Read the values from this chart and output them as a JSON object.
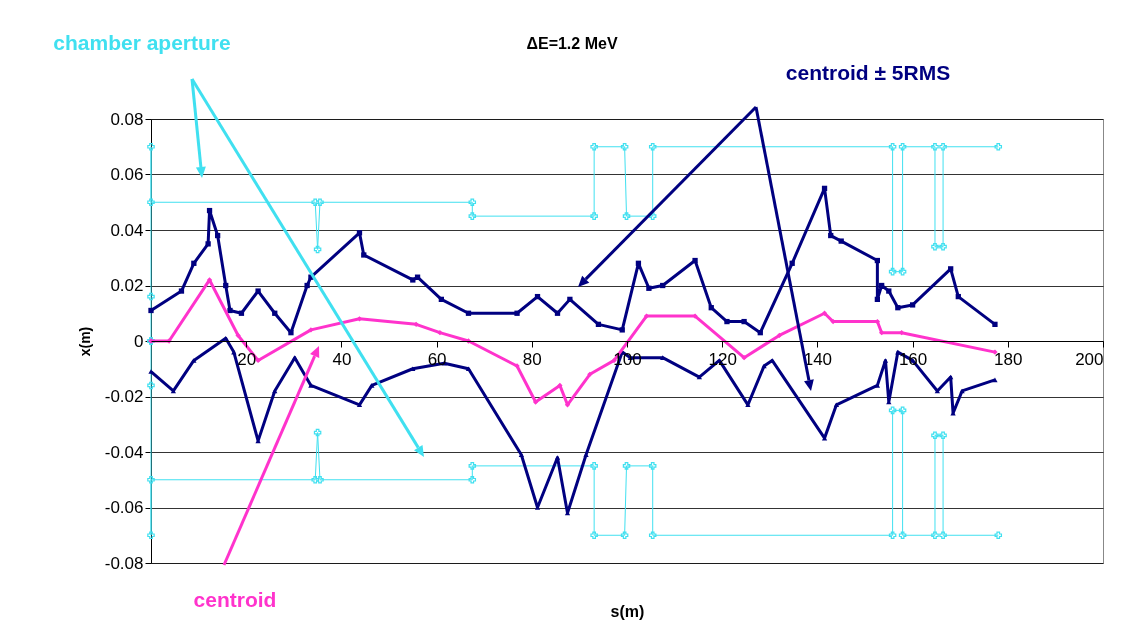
{
  "chart_data": {
    "type": "line",
    "title": "ΔE=1.2 MeV",
    "xlabel": "s(m)",
    "ylabel": "x(m)",
    "xlim": [
      0,
      200
    ],
    "xticks": [
      20,
      40,
      60,
      80,
      100,
      120,
      140,
      160,
      180,
      200
    ],
    "ylim": [
      -0.08,
      0.08
    ],
    "yticks": [
      -0.08,
      -0.06,
      -0.04,
      -0.02,
      0,
      0.02,
      0.04,
      0.06,
      0.08
    ],
    "grid": "y",
    "series": [
      {
        "name": "chamber aperture",
        "color": "#40e0f0",
        "marker": "cross",
        "x": [
          0,
          0,
          0,
          0,
          34.5,
          35,
          35.5,
          67.5,
          67.5,
          93.1,
          93.1,
          99.5,
          99.9,
          105.4,
          105.4,
          155.8,
          155.8,
          157.9,
          157.9,
          164.7,
          164.7,
          166.4,
          166.4,
          178
        ],
        "values": [
          0,
          0.016,
          0.07,
          0.05,
          0.05,
          0.033,
          0.05,
          0.05,
          0.045,
          0.045,
          0.07,
          0.07,
          0.045,
          0.045,
          0.07,
          0.07,
          0.025,
          0.025,
          0.07,
          0.07,
          0.034,
          0.034,
          0.07,
          0.07
        ]
      },
      {
        "color": "#40e0f0",
        "marker": "cross",
        "x": [
          0,
          0,
          0,
          0,
          34.5,
          35,
          35.5,
          67.5,
          67.5,
          93.1,
          93.1,
          99.5,
          99.9,
          105.4,
          105.4,
          155.8,
          155.8,
          157.9,
          157.9,
          164.7,
          164.7,
          166.4,
          166.4,
          178
        ],
        "values": [
          0,
          -0.016,
          -0.07,
          -0.05,
          -0.05,
          -0.033,
          -0.05,
          -0.05,
          -0.045,
          -0.045,
          -0.07,
          -0.07,
          -0.045,
          -0.045,
          -0.07,
          -0.07,
          -0.025,
          -0.025,
          -0.07,
          -0.07,
          -0.034,
          -0.034,
          -0.07,
          -0.07
        ]
      },
      {
        "name": "centroid ± 5RMS",
        "color": "#000080",
        "marker": "square",
        "x": [
          0,
          6.4,
          9,
          12,
          12.3,
          14,
          15.7,
          16.6,
          19,
          22.5,
          26,
          29.4,
          32.8,
          33.6,
          43.8,
          44.7,
          55,
          56,
          61,
          66.7,
          76.9,
          81.2,
          85.4,
          88,
          94,
          99,
          102.4,
          104.6,
          107.5,
          114.3,
          117.7,
          121,
          124.6,
          128,
          134.7,
          141.5,
          142.8,
          145,
          152.6,
          152.6,
          153.5,
          155,
          156.9,
          160,
          168,
          169.6,
          177.3
        ],
        "values": [
          0.011,
          0.018,
          0.028,
          0.035,
          0.047,
          0.038,
          0.02,
          0.011,
          0.01,
          0.018,
          0.01,
          0.003,
          0.02,
          0.023,
          0.039,
          0.031,
          0.022,
          0.023,
          0.015,
          0.01,
          0.01,
          0.016,
          0.01,
          0.015,
          0.006,
          0.004,
          0.028,
          0.019,
          0.02,
          0.029,
          0.012,
          0.007,
          0.007,
          0.003,
          0.028,
          0.055,
          0.038,
          0.036,
          0.029,
          0.015,
          0.02,
          0.018,
          0.012,
          0.013,
          0.026,
          0.016,
          0.006
        ]
      },
      {
        "color": "#000080",
        "marker": "triangle",
        "x": [
          0,
          4.7,
          9,
          15.7,
          17.4,
          22.5,
          26,
          30.2,
          33.6,
          43.8,
          46.4,
          55,
          61.6,
          66.7,
          77.8,
          81.2,
          85.4,
          87.5,
          91.4,
          99,
          100.7,
          107.5,
          115.2,
          119.4,
          125.4,
          128.8,
          130.5,
          141.5,
          144,
          152.6,
          154.3,
          155,
          156.9,
          160,
          165.2,
          168,
          168.5,
          170.4,
          177.3
        ],
        "values": [
          -0.011,
          -0.018,
          -0.007,
          0.001,
          -0.004,
          -0.036,
          -0.018,
          -0.006,
          -0.016,
          -0.023,
          -0.016,
          -0.01,
          -0.008,
          -0.01,
          -0.041,
          -0.06,
          -0.042,
          -0.062,
          -0.041,
          -0.004,
          -0.006,
          -0.006,
          -0.013,
          -0.007,
          -0.023,
          -0.009,
          -0.007,
          -0.035,
          -0.023,
          -0.016,
          -0.007,
          -0.022,
          -0.004,
          -0.007,
          -0.018,
          -0.013,
          -0.026,
          -0.018,
          -0.014
        ]
      },
      {
        "name": "centroid",
        "color": "#ff33cc",
        "marker": "diamond",
        "x": [
          0,
          3.8,
          12.3,
          18.3,
          22.5,
          33.6,
          43.8,
          55.7,
          60.7,
          66.7,
          76.9,
          80.8,
          85.9,
          87.5,
          92.2,
          97.3,
          104.1,
          114.3,
          124.6,
          132,
          141.5,
          143.3,
          152.6,
          153.5,
          157.7,
          177.3
        ],
        "values": [
          0,
          0,
          0.022,
          0.002,
          -0.007,
          0.004,
          0.008,
          0.006,
          0.003,
          0,
          -0.009,
          -0.022,
          -0.016,
          -0.023,
          -0.012,
          -0.007,
          0.009,
          0.009,
          -0.006,
          0.002,
          0.01,
          0.007,
          0.007,
          0.003,
          0.003,
          -0.004
        ]
      }
    ]
  }
}
